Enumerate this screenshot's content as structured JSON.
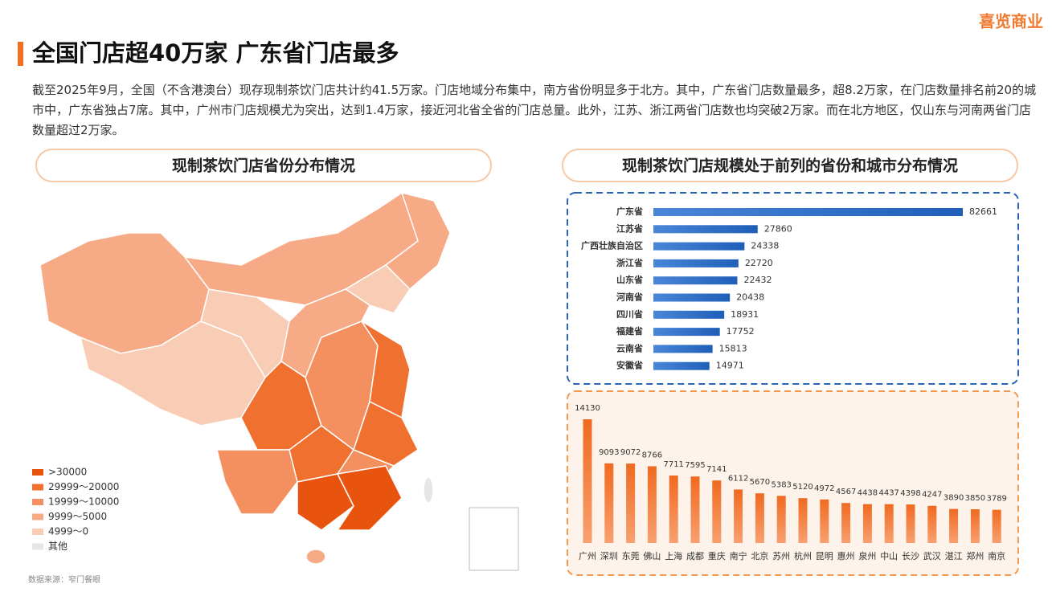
{
  "brand": "喜览商业",
  "title": "全国门店超40万家 广东省门店最多",
  "description": "截至2025年9月，全国（不含港澳台）现存现制茶饮门店共计约41.5万家。门店地域分布集中，南方省份明显多于北方。其中，广东省门店数量最多，超8.2万家，在门店数量排名前20的城市中，广东省独占7席。其中，广州市门店规模尤为突出，达到1.4万家，接近河北省全省的门店总量。此外，江苏、浙江两省门店数也均突破2万家。而在北方地区，仅山东与河南两省门店数量超过2万家。",
  "map": {
    "title": "现制茶饮门店省份分布情况",
    "legend": [
      {
        "label": ">30000",
        "color": "#e8530e"
      },
      {
        "label": "29999～20000",
        "color": "#f07030"
      },
      {
        "label": "19999～10000",
        "color": "#f49060"
      },
      {
        "label": "9999～5000",
        "color": "#f6aa85"
      },
      {
        "label": "4999～0",
        "color": "#f9cdb5"
      },
      {
        "label": "其他",
        "color": "#e6e6e6"
      }
    ]
  },
  "right_title": "现制茶饮门店规模处于前列的省份和城市分布情况",
  "chart_data": [
    {
      "type": "hbar",
      "color": "#1f5fb8",
      "categories": [
        "广东省",
        "江苏省",
        "广西壮族自治区",
        "浙江省",
        "山东省",
        "河南省",
        "四川省",
        "福建省",
        "云南省",
        "安徽省"
      ],
      "values": [
        82661,
        27860,
        24338,
        22720,
        22432,
        20438,
        18931,
        17752,
        15813,
        14971
      ]
    },
    {
      "type": "bar",
      "color": "#f06a20",
      "categories": [
        "广州",
        "深圳",
        "东莞",
        "佛山",
        "上海",
        "成都",
        "重庆",
        "南宁",
        "北京",
        "苏州",
        "杭州",
        "昆明",
        "惠州",
        "泉州",
        "中山",
        "长沙",
        "武汉",
        "湛江",
        "郑州",
        "南京"
      ],
      "values": [
        14130,
        9093,
        9072,
        8766,
        7711,
        7595,
        7141,
        6112,
        5670,
        5383,
        5120,
        4972,
        4567,
        4438,
        4437,
        4398,
        4247,
        3890,
        3850,
        3789
      ]
    }
  ],
  "source": "数据来源：窄门餐眼"
}
